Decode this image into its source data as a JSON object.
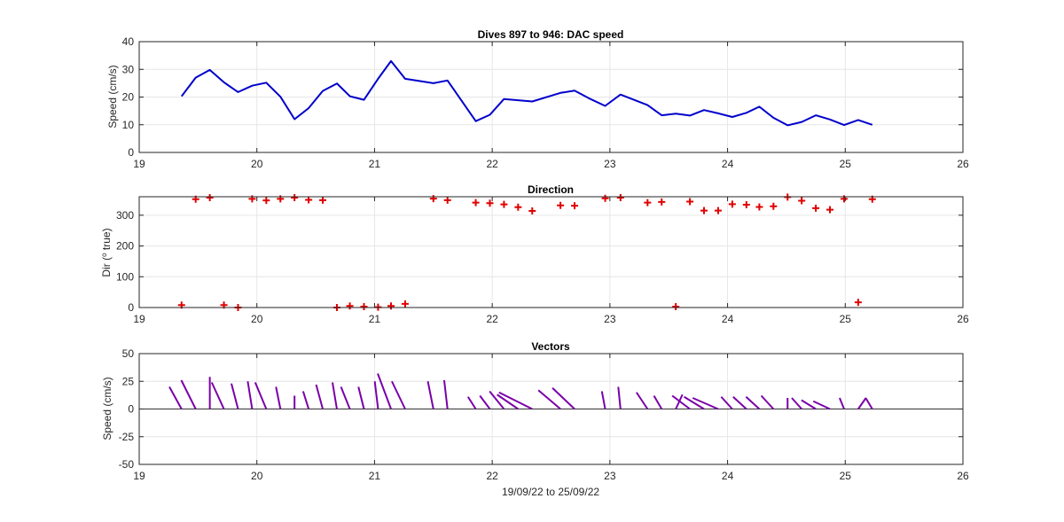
{
  "chart_data": [
    {
      "type": "line",
      "title": "Dives 897 to 946: DAC speed",
      "xlabel": "",
      "ylabel": "Speed (cm/s)",
      "xlim": [
        19,
        26
      ],
      "ylim": [
        0,
        40
      ],
      "xticks": [
        "19",
        "20",
        "21",
        "22",
        "23",
        "24",
        "25",
        "26"
      ],
      "yticks": [
        "0",
        "10",
        "20",
        "30",
        "40"
      ],
      "grid": true,
      "series": [
        {
          "color": "#0000cc",
          "x": [
            19.36,
            19.48,
            19.6,
            19.72,
            19.84,
            19.96,
            20.08,
            20.2,
            20.32,
            20.44,
            20.56,
            20.68,
            20.79,
            20.91,
            21.03,
            21.14,
            21.26,
            21.5,
            21.62,
            21.86,
            21.98,
            22.1,
            22.34,
            22.58,
            22.7,
            22.82,
            22.96,
            23.09,
            23.32,
            23.44,
            23.56,
            23.68,
            23.8,
            23.92,
            24.04,
            24.16,
            24.27,
            24.39,
            24.51,
            24.63,
            24.75,
            24.87,
            24.99,
            25.11,
            25.23
          ],
          "values": [
            20.3,
            27.0,
            29.8,
            25.3,
            21.8,
            24.1,
            25.2,
            20.1,
            12.0,
            16.0,
            22.2,
            24.9,
            20.3,
            19.0,
            26.6,
            33.0,
            26.6,
            25.0,
            26.0,
            11.3,
            13.6,
            19.3,
            18.4,
            21.5,
            22.3,
            19.6,
            16.8,
            20.9,
            17.1,
            13.4,
            14.0,
            13.3,
            15.3,
            14.1,
            12.8,
            14.3,
            16.5,
            12.5,
            9.8,
            11.0,
            13.4,
            11.9,
            9.9,
            11.7,
            10.0
          ]
        }
      ]
    },
    {
      "type": "scatter",
      "title": "Direction",
      "xlabel": "",
      "ylabel": "Dir (° true)",
      "ylabel_parts": [
        "Dir (",
        "o",
        " true)"
      ],
      "xlim": [
        19,
        26
      ],
      "ylim": [
        0,
        360
      ],
      "xticks": [
        "19",
        "20",
        "21",
        "22",
        "23",
        "24",
        "25",
        "26"
      ],
      "yticks": [
        "0",
        "100",
        "200",
        "300"
      ],
      "grid": true,
      "marker": "+",
      "series": [
        {
          "color": "#e00000",
          "x": [
            19.36,
            19.48,
            19.6,
            19.72,
            19.84,
            19.96,
            20.08,
            20.2,
            20.32,
            20.44,
            20.56,
            20.68,
            20.79,
            20.91,
            21.03,
            21.14,
            21.26,
            21.5,
            21.62,
            21.86,
            21.98,
            22.1,
            22.22,
            22.34,
            22.58,
            22.7,
            22.96,
            23.09,
            23.32,
            23.44,
            23.56,
            23.68,
            23.8,
            23.92,
            24.04,
            24.16,
            24.27,
            24.39,
            24.51,
            24.63,
            24.75,
            24.87,
            24.99,
            25.11,
            25.23
          ],
          "values": [
            8,
            352,
            357,
            8,
            0,
            353,
            348,
            353,
            357,
            350,
            349,
            0,
            5,
            3,
            1,
            5,
            12,
            354,
            349,
            341,
            339,
            335,
            326,
            314,
            332,
            331,
            355,
            357,
            341,
            343,
            3,
            344,
            315,
            315,
            336,
            334,
            327,
            329,
            359,
            347,
            323,
            318,
            353,
            17,
            352
          ]
        }
      ]
    },
    {
      "type": "line",
      "subtype": "stick-vectors",
      "title": "Vectors",
      "xlabel": "19/09/22 to 25/09/22",
      "ylabel": "Speed (cm/s)",
      "xlim": [
        19,
        26
      ],
      "ylim": [
        -50,
        50
      ],
      "xticks": [
        "19",
        "20",
        "21",
        "22",
        "23",
        "24",
        "25",
        "26"
      ],
      "yticks": [
        "-50",
        "-25",
        "0",
        "25",
        "50"
      ],
      "grid": true,
      "series": [
        {
          "color": "#7a00a8",
          "x": [
            19.36,
            19.48,
            19.6,
            19.72,
            19.84,
            19.96,
            20.08,
            20.2,
            20.32,
            20.44,
            20.56,
            20.68,
            20.79,
            20.91,
            21.03,
            21.14,
            21.26,
            21.5,
            21.62,
            21.86,
            21.98,
            22.1,
            22.22,
            22.34,
            22.58,
            22.7,
            22.96,
            23.09,
            23.32,
            23.44,
            23.56,
            23.68,
            23.8,
            23.92,
            24.04,
            24.16,
            24.27,
            24.39,
            24.51,
            24.63,
            24.75,
            24.87,
            24.99,
            25.11,
            25.23
          ],
          "u": [
            -11,
            -13,
            0,
            -11,
            -6,
            -4,
            -10,
            -4,
            0,
            -5,
            -6,
            -4,
            -8,
            -5,
            -3,
            -12,
            -12,
            -5,
            -3,
            -7,
            -9,
            -13,
            -19,
            -30,
            -20,
            -20,
            -3,
            -2,
            -10,
            -7,
            6,
            -16,
            -18,
            -23,
            -10,
            -12,
            -12,
            -11,
            0,
            -9,
            -13,
            -15,
            -4,
            7,
            -6
          ],
          "v": [
            20,
            26,
            29,
            24,
            23,
            25,
            24,
            20,
            12,
            16,
            22,
            24,
            20,
            20,
            25,
            32,
            25,
            25,
            26,
            11,
            12,
            16,
            13,
            15,
            17,
            19,
            16,
            20,
            15,
            12,
            13,
            12,
            11,
            10,
            11,
            11,
            11,
            12,
            10,
            10,
            8,
            7,
            10,
            10,
            10
          ]
        }
      ]
    }
  ]
}
